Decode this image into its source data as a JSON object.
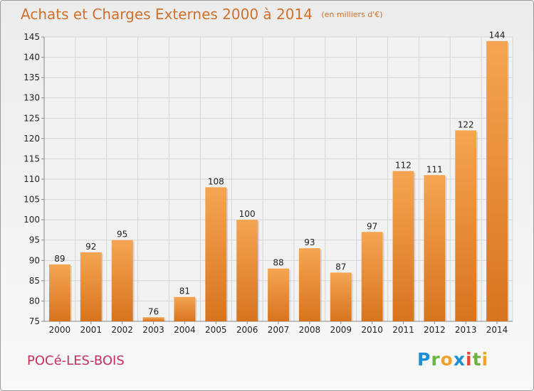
{
  "header": {
    "title": "Achats et Charges Externes 2000 à 2014",
    "unit": "(en milliers d'€)"
  },
  "footer": {
    "commune": "POCé-LES-BOIS",
    "logo": [
      "P",
      "r",
      "o",
      "x",
      "i",
      "t",
      "i"
    ]
  },
  "colors": {
    "bar_top": "#f5a552",
    "bar_bottom": "#d8741e",
    "title": "#d4702a",
    "commune": "#c8305a"
  },
  "chart_data": {
    "type": "bar",
    "title": "Achats et Charges Externes 2000 à 2014",
    "subtitle": "(en milliers d'€)",
    "categories": [
      "2000",
      "2001",
      "2002",
      "2003",
      "2004",
      "2005",
      "2006",
      "2007",
      "2008",
      "2009",
      "2010",
      "2011",
      "2012",
      "2013",
      "2014"
    ],
    "values": [
      89,
      92,
      95,
      76,
      81,
      108,
      100,
      88,
      93,
      87,
      97,
      112,
      111,
      122,
      144
    ],
    "ylim": [
      75,
      145
    ],
    "yticks": [
      75,
      80,
      85,
      90,
      95,
      100,
      105,
      110,
      115,
      120,
      125,
      130,
      135,
      140,
      145
    ],
    "grid": true
  }
}
